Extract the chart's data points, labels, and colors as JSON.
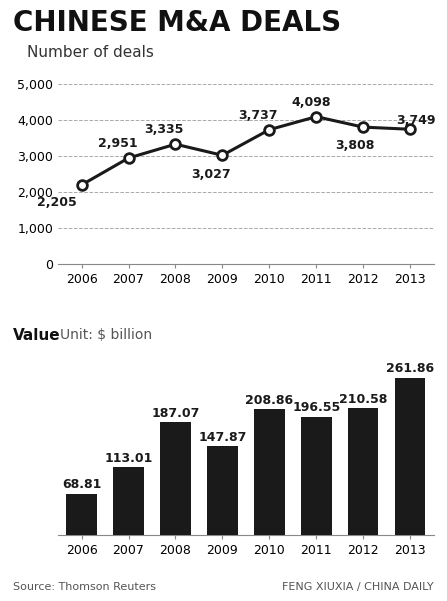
{
  "title": "CHINESE M&A DEALS",
  "line_subtitle": "Number of deals",
  "bar_subtitle": "Value",
  "bar_unit": "Unit: $ billion",
  "years": [
    2006,
    2007,
    2008,
    2009,
    2010,
    2011,
    2012,
    2013
  ],
  "line_values": [
    2205,
    2951,
    3335,
    3027,
    3737,
    4098,
    3808,
    3749
  ],
  "bar_values": [
    68.81,
    113.01,
    187.07,
    147.87,
    208.86,
    196.55,
    210.58,
    261.86
  ],
  "line_color": "#1a1a1a",
  "bar_color": "#1a1a1a",
  "marker_color": "#ffffff",
  "marker_edge_color": "#1a1a1a",
  "grid_color": "#aaaaaa",
  "background_color": "#ffffff",
  "source_text": "Source: Thomson Reuters",
  "credit_text": "FENG XIUXIA / CHINA DAILY",
  "line_ylim": [
    0,
    5000
  ],
  "line_yticks": [
    0,
    1000,
    2000,
    3000,
    4000,
    5000
  ],
  "title_fontsize": 20,
  "subtitle_fontsize": 11,
  "label_fontsize": 9,
  "annotation_fontsize": 9,
  "footer_fontsize": 8
}
